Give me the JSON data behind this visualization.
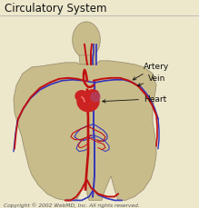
{
  "title": "Circulatory System",
  "title_fontsize": 8.5,
  "title_color": "#111111",
  "bg_color": "#ede8cc",
  "body_color": "#c9bc8b",
  "body_stroke": "#9a9070",
  "artery_color": "#c01010",
  "vein_color": "#3333bb",
  "heart_color": "#cc2222",
  "heart_purple": "#aa4466",
  "label_artery": "Artery",
  "label_vein": "Vein",
  "label_heart": "Heart",
  "copyright": "Copyright © 2002 WebMD, Inc. All rights reserved.",
  "copyright_fontsize": 4.2,
  "label_fontsize": 6.5
}
